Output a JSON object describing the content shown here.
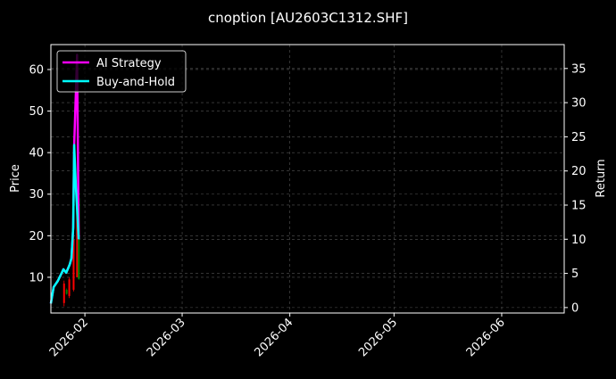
{
  "chart_data": {
    "type": "line",
    "title": "cnoption [AU2603C1312.SHF]",
    "ylabel": "Price",
    "y2label": "Return",
    "xlim": [
      "2026-01-22T05:00",
      "2026-06-19"
    ],
    "ylim": [
      1.4,
      66
    ],
    "y2lim": [
      -0.8,
      38.5
    ],
    "xticks": [
      "2026-02",
      "2026-03",
      "2026-04",
      "2026-05",
      "2026-06"
    ],
    "xtick_dates": [
      "2026-02-01",
      "2026-03-01",
      "2026-04-01",
      "2026-05-01",
      "2026-06-01"
    ],
    "yticks": [
      10,
      20,
      30,
      40,
      50,
      60
    ],
    "y2ticks": [
      0,
      5,
      10,
      15,
      20,
      25,
      30,
      35
    ],
    "grid": true,
    "legend": "top-left",
    "candles": [
      {
        "t": "2026-01-26T00:00",
        "open": 8.5,
        "high": 9.2,
        "low": 3.0,
        "close": 3.8
      },
      {
        "t": "2026-01-26T18:00",
        "open": 6.0,
        "high": 7.3,
        "low": 5.8,
        "close": 7.0
      },
      {
        "t": "2026-01-27T12:00",
        "open": 9.5,
        "high": 10.0,
        "low": 5.0,
        "close": 5.5
      },
      {
        "t": "2026-01-28T18:00",
        "open": 19.0,
        "high": 20.0,
        "low": 6.6,
        "close": 7.0
      },
      {
        "t": "2026-01-29T18:00",
        "open": 30.0,
        "high": 31.0,
        "low": 10.0,
        "close": 10.0
      },
      {
        "t": "2026-01-30T06:00",
        "open": 9.6,
        "high": 29.5,
        "low": 9.4,
        "close": 29.0
      }
    ],
    "series": [
      {
        "name": "AI Strategy",
        "color": "#ff00ff",
        "axis": "right",
        "x": [
          "2026-01-22T05:00",
          "2026-01-23T00:00",
          "2026-01-24T05:00",
          "2026-01-25T20:00",
          "2026-01-26T15:00",
          "2026-01-27T15:00",
          "2026-01-28T03:00",
          "2026-01-28T15:00",
          "2026-01-28T22:00",
          "2026-01-29T18:00",
          "2026-01-30T05:00"
        ],
        "values": [
          0.6,
          3.0,
          3.9,
          5.6,
          5.1,
          6.3,
          7.2,
          11.7,
          23.8,
          37.0,
          10.0
        ]
      },
      {
        "name": "Buy-and-Hold",
        "color": "#00ffff",
        "axis": "right",
        "x": [
          "2026-01-22T05:00",
          "2026-01-23T00:00",
          "2026-01-24T05:00",
          "2026-01-25T20:00",
          "2026-01-26T15:00",
          "2026-01-27T15:00",
          "2026-01-28T03:00",
          "2026-01-28T15:00",
          "2026-01-28T22:00",
          "2026-01-29T10:00",
          "2026-01-30T05:00"
        ],
        "values": [
          0.6,
          3.0,
          3.9,
          5.6,
          5.1,
          6.3,
          7.2,
          11.7,
          23.8,
          17.6,
          10.0
        ]
      }
    ],
    "colors": {
      "up": "#008000",
      "down": "#ff0000",
      "background": "#000000",
      "grid": "#555555"
    }
  }
}
